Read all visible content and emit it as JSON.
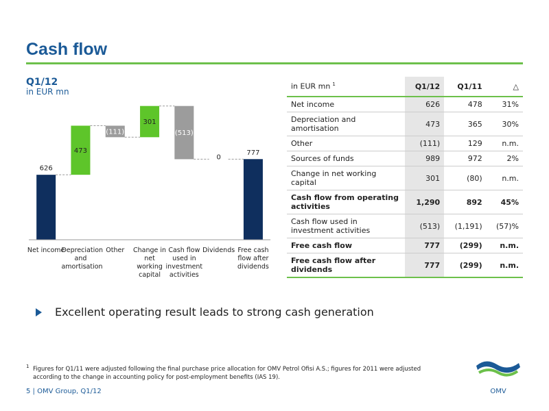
{
  "header": {
    "title": "Cash flow"
  },
  "chart_data": {
    "type": "waterfall",
    "title": "Q1/12",
    "subtitle": "in EUR mn",
    "categories": [
      "Net income",
      "Depreciation and amortisation",
      "Other",
      "Change in net working capital",
      "Cash flow used in investment activities",
      "Dividends",
      "Free cash flow after dividends"
    ],
    "values": [
      626,
      473,
      -111,
      301,
      -513,
      0,
      777
    ],
    "value_labels": [
      "626",
      "473",
      "(111)",
      "301",
      "(513)",
      "0",
      "777"
    ],
    "measure": [
      "absolute",
      "relative",
      "relative",
      "relative",
      "relative",
      "relative",
      "absolute"
    ],
    "colors": [
      "#0f2f5e",
      "#5ec52a",
      "#9c9c9c",
      "#5ec52a",
      "#9c9c9c",
      "#9c9c9c",
      "#0f2f5e"
    ],
    "ylim": [
      0,
      1650
    ]
  },
  "table": {
    "header": [
      "in EUR mn",
      "Q1/12",
      "Q1/11",
      "△"
    ],
    "header_note": "1",
    "rows": [
      {
        "cells": [
          "Net income",
          "626",
          "478",
          "31%"
        ],
        "bold": false
      },
      {
        "cells": [
          "Depreciation and amortisation",
          "473",
          "365",
          "30%"
        ],
        "bold": false
      },
      {
        "cells": [
          "Other",
          "(111)",
          "129",
          "n.m."
        ],
        "bold": false
      },
      {
        "cells": [
          "Sources of funds",
          "989",
          "972",
          "2%"
        ],
        "bold": false
      },
      {
        "cells": [
          "Change in net working capital",
          "301",
          "(80)",
          "n.m."
        ],
        "bold": false
      },
      {
        "cells": [
          "Cash flow from operating activities",
          "1,290",
          "892",
          "45%"
        ],
        "bold": true
      },
      {
        "cells": [
          "Cash flow used in investment activities",
          "(513)",
          "(1,191)",
          "(57)%"
        ],
        "bold": false
      },
      {
        "cells": [
          "Free cash flow",
          "777",
          "(299)",
          "n.m."
        ],
        "bold": true
      },
      {
        "cells": [
          "Free cash flow after dividends",
          "777",
          "(299)",
          "n.m."
        ],
        "bold": true
      }
    ]
  },
  "bullet": "Excellent operating result leads to strong cash generation",
  "footnote": {
    "mark": "1",
    "text": "Figures for Q1/11 were adjusted following the final purchase price allocation for OMV Petrol Ofisi A.S.; figures for 2011 were adjusted according to the change in accounting policy for post-employment benefits (IAS 19)."
  },
  "footer": "5 | OMV Group, Q1/12",
  "logo": {
    "text": "OMV"
  }
}
